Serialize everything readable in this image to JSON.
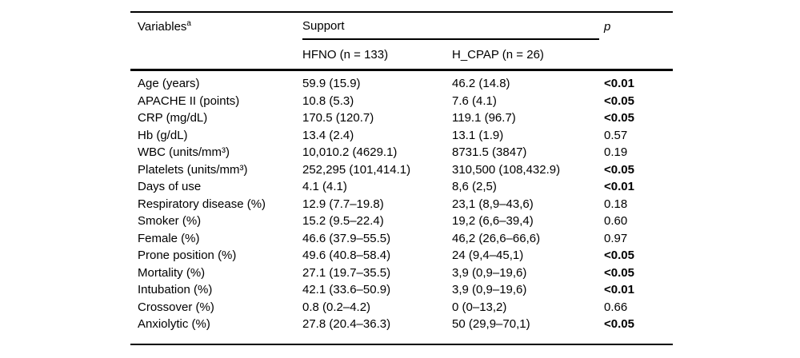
{
  "table": {
    "header": {
      "variables_label": "Variables",
      "variables_sup": "a",
      "support_label": "Support",
      "hfno_label": "HFNO (n = 133)",
      "hcpap_label": "H_CPAP (n = 26)",
      "p_label": "p"
    },
    "rows": [
      {
        "variable": "Age (years)",
        "hfno": "59.9 (15.9)",
        "hcpap": "46.2 (14.8)",
        "p": "<0.01",
        "significant": true
      },
      {
        "variable": "APACHE II (points)",
        "hfno": "10.8 (5.3)",
        "hcpap": "7.6 (4.1)",
        "p": "<0.05",
        "significant": true
      },
      {
        "variable": "CRP (mg/dL)",
        "hfno": "170.5 (120.7)",
        "hcpap": "119.1 (96.7)",
        "p": "<0.05",
        "significant": true
      },
      {
        "variable": "Hb (g/dL)",
        "hfno": "13.4 (2.4)",
        "hcpap": "13.1 (1.9)",
        "p": "0.57",
        "significant": false
      },
      {
        "variable": "WBC (units/mm³)",
        "hfno": "10,010.2 (4629.1)",
        "hcpap": "8731.5 (3847)",
        "p": "0.19",
        "significant": false
      },
      {
        "variable": "Platelets (units/mm³)",
        "hfno": "252,295 (101,414.1)",
        "hcpap": "310,500 (108,432.9)",
        "p": "<0.05",
        "significant": true
      },
      {
        "variable": "Days of use",
        "hfno": "4.1 (4.1)",
        "hcpap": "8,6 (2,5)",
        "p": "<0.01",
        "significant": true
      },
      {
        "variable": "Respiratory disease (%)",
        "hfno": "12.9 (7.7–19.8)",
        "hcpap": "23,1 (8,9–43,6)",
        "p": "0.18",
        "significant": false
      },
      {
        "variable": "Smoker (%)",
        "hfno": "15.2 (9.5–22.4)",
        "hcpap": "19,2 (6,6–39,4)",
        "p": "0.60",
        "significant": false
      },
      {
        "variable": "Female (%)",
        "hfno": "46.6 (37.9–55.5)",
        "hcpap": "46,2 (26,6–66,6)",
        "p": "0.97",
        "significant": false
      },
      {
        "variable": "Prone position (%)",
        "hfno": "49.6 (40.8–58.4)",
        "hcpap": "24 (9,4–45,1)",
        "p": "<0.05",
        "significant": true
      },
      {
        "variable": "Mortality (%)",
        "hfno": "27.1 (19.7–35.5)",
        "hcpap": "3,9 (0,9–19,6)",
        "p": "<0.05",
        "significant": true
      },
      {
        "variable": "Intubation (%)",
        "hfno": "42.1 (33.6–50.9)",
        "hcpap": "3,9 (0,9–19,6)",
        "p": "<0.01",
        "significant": true
      },
      {
        "variable": "Crossover (%)",
        "hfno": "0.8 (0.2–4.2)",
        "hcpap": "0 (0–13,2)",
        "p": "0.66",
        "significant": false
      },
      {
        "variable": "Anxiolytic (%)",
        "hfno": "27.8 (20.4–36.3)",
        "hcpap": "50 (29,9–70,1)",
        "p": "<0.05",
        "significant": true
      }
    ]
  }
}
